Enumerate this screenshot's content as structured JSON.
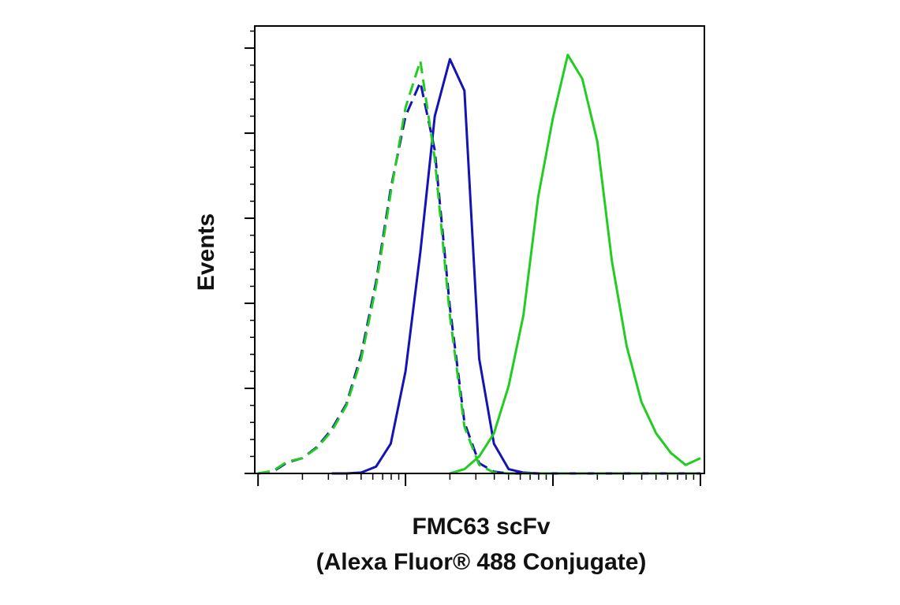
{
  "chart_data": {
    "type": "line",
    "x_label": [
      "FMC63 scFv",
      "(Alexa Fluor® 488 Conjugate)"
    ],
    "y_label": "Events",
    "x_log": true,
    "xlim": [
      0.95,
      1064
    ],
    "xticks": [
      1,
      10,
      100,
      1000
    ],
    "xminorticks": [
      2,
      3,
      4,
      5,
      6,
      7,
      8,
      9,
      20,
      30,
      40,
      50,
      60,
      70,
      80,
      90,
      200,
      300,
      400,
      500,
      600,
      700,
      800,
      900
    ],
    "ylim": [
      0,
      5.26
    ],
    "yticks": [
      0,
      1,
      2,
      3,
      4,
      5
    ],
    "yminorticks": [
      0.2,
      0.4,
      0.6,
      0.8,
      1.2,
      1.4,
      1.6,
      1.8,
      2.2,
      2.4,
      2.6,
      2.8,
      3.2,
      3.4,
      3.6,
      3.8,
      4.2,
      4.4,
      4.6,
      4.8,
      5.2
    ],
    "x": [
      1,
      1.26,
      1.58,
      2,
      2.51,
      3.16,
      3.98,
      5.01,
      6.31,
      7.94,
      10,
      12.6,
      15.8,
      20,
      25.1,
      31.6,
      39.8,
      50.1,
      63.1,
      79.4,
      100,
      126,
      158,
      200,
      251,
      316,
      398,
      501,
      631,
      794,
      1000
    ],
    "series": [
      {
        "color": "#1414b4",
        "dashed": false,
        "values": [
          null,
          null,
          null,
          null,
          null,
          0,
          0,
          0.01,
          0.08,
          0.35,
          1.2,
          2.6,
          4.2,
          4.87,
          4.5,
          1.35,
          0.35,
          0.05,
          0.01,
          0,
          0,
          0,
          0,
          0,
          0,
          0,
          0,
          0,
          0,
          0,
          0
        ]
      },
      {
        "color": "#22cc22",
        "dashed": false,
        "values": [
          null,
          null,
          null,
          null,
          null,
          null,
          null,
          null,
          null,
          null,
          null,
          null,
          null,
          0,
          0.05,
          0.2,
          0.47,
          1.03,
          1.86,
          3.25,
          4.18,
          4.92,
          4.64,
          3.9,
          2.5,
          1.5,
          0.84,
          0.47,
          0.24,
          0.1,
          0.18
        ]
      },
      {
        "color": "#1414b4",
        "dashed": true,
        "values": [
          0,
          0.02,
          0.13,
          0.18,
          0.31,
          0.52,
          0.82,
          1.4,
          2.25,
          3.35,
          4.2,
          4.6,
          3.8,
          1.95,
          0.6,
          0.12,
          0.02,
          0,
          0,
          0,
          0,
          0,
          0,
          0,
          0,
          0,
          0,
          0,
          0,
          0,
          0
        ]
      },
      {
        "color": "#22cc22",
        "dashed": true,
        "values": [
          0,
          0.03,
          0.14,
          0.18,
          0.3,
          0.5,
          0.8,
          1.35,
          2.2,
          3.3,
          4.3,
          4.85,
          3.7,
          1.85,
          0.55,
          0.1,
          0.01,
          0,
          0,
          0,
          0,
          0,
          0,
          0,
          0,
          0,
          0,
          0,
          0,
          0,
          0
        ]
      }
    ]
  }
}
